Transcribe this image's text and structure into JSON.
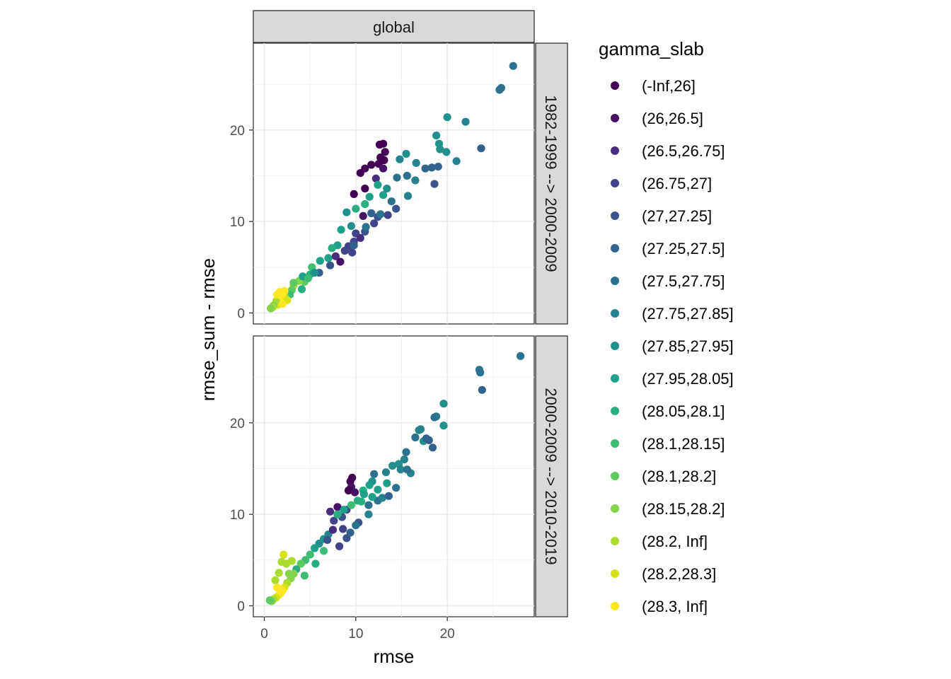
{
  "chart_data": {
    "type": "scatter",
    "facet_column": "global",
    "facet_rows": [
      "1982-1999 --> 2000-2009",
      "2000-2009 --> 2010-2019"
    ],
    "xlabel": "rmse",
    "ylabel": "rmse_sum - rmse",
    "xlim": [
      -1.2,
      29.5
    ],
    "ylim": [
      -1.2,
      29.5
    ],
    "x_ticks": [
      0,
      10,
      20
    ],
    "y_ticks": [
      0,
      10,
      20
    ],
    "legend_title": "gamma_slab",
    "legend": [
      {
        "label": "(-Inf,26]",
        "color": "#440154"
      },
      {
        "label": "(26,26.5]",
        "color": "#471164"
      },
      {
        "label": "(26.5,26.75]",
        "color": "#472F7D"
      },
      {
        "label": "(26.75,27]",
        "color": "#414487"
      },
      {
        "label": "(27,27.25]",
        "color": "#3B528B"
      },
      {
        "label": "(27.25,27.5]",
        "color": "#33638D"
      },
      {
        "label": "(27.5,27.75]",
        "color": "#2C728E"
      },
      {
        "label": "(27.75,27.85]",
        "color": "#26828E"
      },
      {
        "label": "(27.85,27.95]",
        "color": "#21908C"
      },
      {
        "label": "(27.95,28.05]",
        "color": "#1FA088"
      },
      {
        "label": "(28.05,28.1]",
        "color": "#28AE80"
      },
      {
        "label": "(28.1,28.15]",
        "color": "#3FBC73"
      },
      {
        "label": "(28.1,28.2]",
        "color": "#5EC962"
      },
      {
        "label": "(28.15,28.2]",
        "color": "#84D44B"
      },
      {
        "label": "(28.2, Inf]",
        "color": "#ADDC30"
      },
      {
        "label": "(28.2,28.3]",
        "color": "#D8E219"
      },
      {
        "label": "(28.3, Inf]",
        "color": "#FDE725"
      }
    ],
    "series": [
      {
        "panel": 0,
        "points": [
          [
            27.2,
            27.0,
            6
          ],
          [
            25.9,
            24.6,
            6
          ],
          [
            25.7,
            24.4,
            6
          ],
          [
            22.0,
            20.9,
            7
          ],
          [
            20.0,
            21.4,
            8
          ],
          [
            23.7,
            18.0,
            5
          ],
          [
            18.8,
            19.4,
            8
          ],
          [
            19.1,
            18.5,
            8
          ],
          [
            19.2,
            17.9,
            8
          ],
          [
            19.9,
            17.6,
            8
          ],
          [
            21.0,
            16.6,
            7
          ],
          [
            19.0,
            16.0,
            5
          ],
          [
            18.3,
            15.9,
            5
          ],
          [
            17.6,
            15.8,
            5
          ],
          [
            18.6,
            14.1,
            4
          ],
          [
            16.6,
            16.4,
            7
          ],
          [
            15.5,
            17.4,
            8
          ],
          [
            14.8,
            16.8,
            7
          ],
          [
            15.6,
            15.0,
            6
          ],
          [
            14.5,
            14.8,
            6
          ],
          [
            13.0,
            18.5,
            0
          ],
          [
            12.6,
            18.4,
            0
          ],
          [
            13.2,
            17.6,
            0
          ],
          [
            12.7,
            17.0,
            0
          ],
          [
            13.1,
            16.7,
            0
          ],
          [
            12.5,
            16.3,
            0
          ],
          [
            11.7,
            16.2,
            0
          ],
          [
            11.0,
            15.8,
            0
          ],
          [
            10.5,
            15.3,
            0
          ],
          [
            13.0,
            15.8,
            1
          ],
          [
            12.2,
            14.7,
            2
          ],
          [
            11.0,
            13.6,
            0
          ],
          [
            9.8,
            13.0,
            0
          ],
          [
            12.4,
            14.0,
            9
          ],
          [
            13.4,
            13.6,
            8
          ],
          [
            13.0,
            12.9,
            9
          ],
          [
            11.5,
            12.7,
            9
          ],
          [
            11.0,
            11.9,
            10
          ],
          [
            10.0,
            11.4,
            10
          ],
          [
            9.0,
            11.0,
            8
          ],
          [
            14.4,
            11.4,
            4
          ],
          [
            13.5,
            10.7,
            3
          ],
          [
            12.4,
            10.5,
            4
          ],
          [
            12.0,
            9.8,
            3
          ],
          [
            11.0,
            8.9,
            4
          ],
          [
            10.0,
            8.7,
            3
          ],
          [
            10.5,
            8.2,
            2
          ],
          [
            9.8,
            7.8,
            3
          ],
          [
            9.2,
            7.3,
            3
          ],
          [
            8.8,
            6.8,
            3
          ],
          [
            8.0,
            7.4,
            9
          ],
          [
            7.4,
            7.1,
            10
          ],
          [
            7.0,
            6.0,
            9
          ],
          [
            6.1,
            5.7,
            9
          ],
          [
            5.2,
            5.0,
            11
          ],
          [
            5.0,
            4.2,
            10
          ],
          [
            4.4,
            3.4,
            12
          ],
          [
            3.8,
            3.5,
            13
          ],
          [
            3.2,
            3.0,
            14
          ],
          [
            3.0,
            2.5,
            12
          ],
          [
            2.8,
            2.0,
            11
          ],
          [
            2.2,
            1.9,
            14
          ],
          [
            2.0,
            1.7,
            16
          ],
          [
            1.8,
            1.3,
            16
          ],
          [
            1.6,
            1.1,
            16
          ],
          [
            1.5,
            0.9,
            15
          ],
          [
            1.3,
            1.3,
            14
          ],
          [
            1.0,
            0.8,
            13
          ],
          [
            0.9,
            0.6,
            14
          ],
          [
            0.7,
            0.5,
            13
          ],
          [
            1.7,
            2.3,
            16
          ],
          [
            2.2,
            2.4,
            16
          ],
          [
            2.5,
            1.4,
            15
          ],
          [
            2.0,
            1.0,
            16
          ],
          [
            1.4,
            2.0,
            16
          ],
          [
            6.0,
            4.4,
            5
          ],
          [
            7.2,
            5.2,
            4
          ],
          [
            7.8,
            6.2,
            2
          ],
          [
            8.3,
            5.6,
            1
          ],
          [
            9.6,
            6.6,
            3
          ],
          [
            11.7,
            10.9,
            5
          ],
          [
            12.7,
            10.8,
            6
          ],
          [
            13.9,
            12.2,
            6
          ],
          [
            15.7,
            12.8,
            7
          ],
          [
            16.5,
            14.5,
            7
          ],
          [
            10.8,
            10.6,
            1
          ],
          [
            9.5,
            9.5,
            8
          ],
          [
            8.4,
            9.1,
            9
          ],
          [
            9.8,
            7.4,
            5
          ],
          [
            11.1,
            9.4,
            6
          ],
          [
            4.2,
            4.0,
            9
          ],
          [
            3.2,
            3.3,
            12
          ],
          [
            4.8,
            3.8,
            11
          ],
          [
            5.5,
            4.4,
            8
          ],
          [
            4.1,
            2.6,
            10
          ]
        ]
      },
      {
        "panel": 1,
        "points": [
          [
            28.0,
            27.3,
            6
          ],
          [
            23.6,
            25.5,
            6
          ],
          [
            23.5,
            25.8,
            6
          ],
          [
            23.8,
            23.6,
            5
          ],
          [
            19.6,
            22.1,
            8
          ],
          [
            18.8,
            20.7,
            6
          ],
          [
            18.6,
            20.6,
            6
          ],
          [
            19.6,
            19.7,
            8
          ],
          [
            17.1,
            19.3,
            7
          ],
          [
            16.9,
            19.2,
            7
          ],
          [
            16.5,
            18.4,
            6
          ],
          [
            17.4,
            18.0,
            8
          ],
          [
            18.0,
            18.1,
            5
          ],
          [
            17.7,
            18.3,
            5
          ],
          [
            18.4,
            17.3,
            5
          ],
          [
            15.5,
            16.8,
            6
          ],
          [
            15.3,
            16.0,
            7
          ],
          [
            14.7,
            15.5,
            8
          ],
          [
            14.0,
            15.3,
            8
          ],
          [
            16.0,
            14.5,
            7
          ],
          [
            13.3,
            14.6,
            7
          ],
          [
            12.0,
            14.4,
            6
          ],
          [
            11.8,
            13.6,
            8
          ],
          [
            11.5,
            13.2,
            9
          ],
          [
            10.8,
            12.6,
            10
          ],
          [
            9.6,
            14.0,
            0
          ],
          [
            9.4,
            13.6,
            0
          ],
          [
            9.5,
            13.0,
            1
          ],
          [
            9.2,
            12.6,
            0
          ],
          [
            9.9,
            12.4,
            1
          ],
          [
            8.0,
            10.8,
            1
          ],
          [
            7.2,
            10.3,
            2
          ],
          [
            9.0,
            10.5,
            3
          ],
          [
            8.5,
            9.7,
            4
          ],
          [
            7.6,
            9.3,
            3
          ],
          [
            10.3,
            9.1,
            4
          ],
          [
            11.4,
            11.0,
            6
          ],
          [
            12.4,
            11.5,
            6
          ],
          [
            12.9,
            11.8,
            7
          ],
          [
            13.6,
            12.0,
            5
          ],
          [
            10.9,
            12.2,
            9
          ],
          [
            10.2,
            11.5,
            10
          ],
          [
            9.5,
            11.0,
            11
          ],
          [
            8.7,
            10.5,
            9
          ],
          [
            8.0,
            10.0,
            10
          ],
          [
            7.0,
            7.8,
            7
          ],
          [
            6.5,
            7.3,
            8
          ],
          [
            6.0,
            6.8,
            8
          ],
          [
            5.5,
            6.3,
            9
          ],
          [
            5.0,
            5.6,
            11
          ],
          [
            4.5,
            5.0,
            11
          ],
          [
            4.0,
            4.6,
            12
          ],
          [
            3.5,
            4.0,
            10
          ],
          [
            3.2,
            3.5,
            13
          ],
          [
            2.9,
            3.0,
            13
          ],
          [
            2.5,
            2.5,
            14
          ],
          [
            2.2,
            2.0,
            15
          ],
          [
            2.0,
            1.7,
            16
          ],
          [
            1.8,
            1.4,
            16
          ],
          [
            1.6,
            1.2,
            16
          ],
          [
            1.3,
            0.9,
            15
          ],
          [
            1.0,
            0.7,
            14
          ],
          [
            0.8,
            0.5,
            13
          ],
          [
            0.6,
            0.6,
            12
          ],
          [
            1.4,
            2.0,
            16
          ],
          [
            1.2,
            2.8,
            14
          ],
          [
            1.6,
            3.6,
            14
          ],
          [
            2.4,
            4.6,
            14
          ],
          [
            3.0,
            4.9,
            14
          ],
          [
            2.1,
            5.6,
            15
          ],
          [
            1.9,
            4.8,
            14
          ],
          [
            2.7,
            3.5,
            13
          ],
          [
            4.4,
            3.3,
            11
          ],
          [
            5.6,
            4.6,
            10
          ],
          [
            6.5,
            6.0,
            11
          ],
          [
            8.2,
            6.5,
            3
          ],
          [
            9.0,
            7.4,
            4
          ],
          [
            9.4,
            8.0,
            5
          ],
          [
            10.0,
            8.8,
            6
          ],
          [
            11.4,
            10.0,
            7
          ],
          [
            14.9,
            14.9,
            7
          ],
          [
            15.6,
            14.9,
            6
          ],
          [
            14.4,
            12.9,
            6
          ],
          [
            13.4,
            13.4,
            9
          ],
          [
            12.4,
            12.7,
            9
          ],
          [
            11.8,
            11.9,
            9
          ],
          [
            10.6,
            11.4,
            10
          ],
          [
            6.9,
            7.2,
            4
          ],
          [
            7.5,
            8.3,
            2
          ],
          [
            8.6,
            8.4,
            3
          ]
        ]
      }
    ]
  }
}
